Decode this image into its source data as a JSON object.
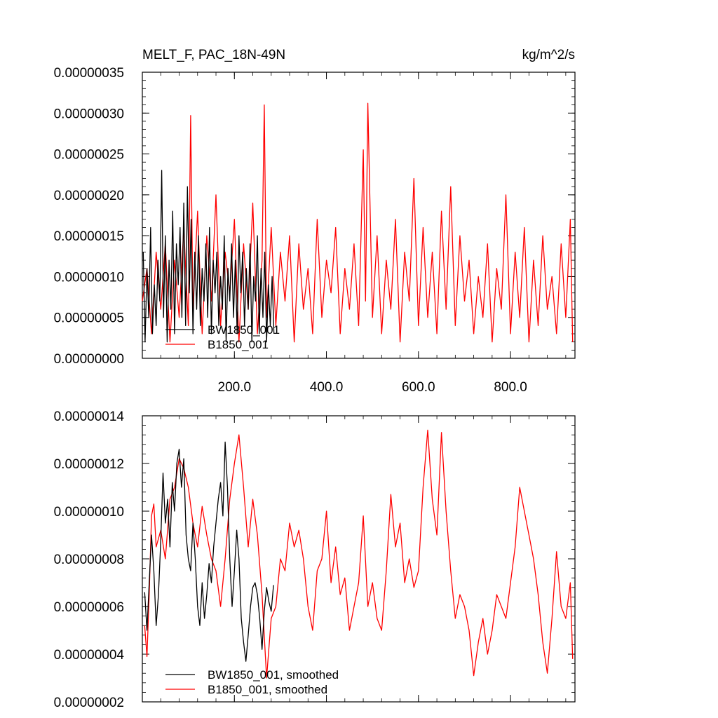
{
  "figure": {
    "colors": {
      "black_series": "#000000",
      "red_series": "#ff0000",
      "frame": "#000000"
    }
  },
  "chart_data": [
    {
      "type": "line",
      "title_left": "MELT_F, PAC_18N-49N",
      "title_right": "kg/m^2/s",
      "xlim": [
        0,
        940
      ],
      "ylim": [
        0.0,
        3.5e-07
      ],
      "xticks": [
        200,
        400,
        600,
        800
      ],
      "xtick_labels": [
        "200.0",
        "400.0",
        "600.0",
        "800.0"
      ],
      "yticks": [
        0.0,
        5e-08,
        1e-07,
        1.5e-07,
        2e-07,
        2.5e-07,
        3e-07,
        3.5e-07
      ],
      "ytick_labels": [
        "0.00000000",
        "0.00000005",
        "0.00000010",
        "0.00000015",
        "0.00000020",
        "0.00000025",
        "0.00000030",
        "0.00000035"
      ],
      "legend_position": "bottom-left",
      "series": [
        {
          "name": "BW1850_001",
          "color": "#000000",
          "x": [
            2,
            6,
            10,
            14,
            18,
            22,
            26,
            30,
            34,
            38,
            42,
            46,
            50,
            54,
            58,
            62,
            66,
            70,
            74,
            78,
            82,
            86,
            90,
            94,
            98,
            102,
            106,
            110,
            114,
            118,
            122,
            126,
            130,
            134,
            138,
            142,
            146,
            150,
            154,
            158,
            162,
            166,
            170,
            174,
            178,
            182,
            186,
            190,
            194,
            198,
            202,
            206,
            210,
            214,
            218,
            222,
            226,
            230,
            234,
            238,
            242,
            246,
            250,
            254,
            258,
            262,
            266,
            270,
            274,
            278,
            282,
            286
          ],
          "values": [
            1.3e-07,
            2e-08,
            1.1e-07,
            5e-08,
            1.6e-07,
            3e-08,
            9e-08,
            4e-08,
            1.2e-07,
            7e-08,
            2.3e-07,
            5e-08,
            1.5e-07,
            2e-08,
            1.2e-07,
            6e-08,
            1.8e-07,
            3e-08,
            1.4e-07,
            9e-08,
            1.6e-07,
            5e-08,
            1.9e-07,
            4e-08,
            2.1e-07,
            8e-08,
            1.7e-07,
            3e-08,
            1.3e-07,
            6e-08,
            1.5e-07,
            4e-08,
            1.1e-07,
            7e-08,
            1.4e-07,
            5e-08,
            1.6e-07,
            3e-08,
            1.2e-07,
            8e-08,
            1.3e-07,
            4e-08,
            1e-07,
            6e-08,
            1.5e-07,
            2e-08,
            1.1e-07,
            7e-08,
            1.4e-07,
            5e-08,
            1.2e-07,
            3e-08,
            1.5e-07,
            8e-08,
            1.3e-07,
            4e-08,
            1.1e-07,
            6e-08,
            1.4e-07,
            2e-08,
            1e-07,
            7e-08,
            1.5e-07,
            3e-08,
            1.1e-07,
            5e-08,
            1.3e-07,
            2e-08,
            9e-08,
            4e-08,
            1e-07,
            3e-08
          ]
        },
        {
          "name": "B1850_001",
          "color": "#ff0000",
          "x": [
            0,
            10,
            20,
            30,
            40,
            50,
            60,
            70,
            80,
            90,
            100,
            105,
            110,
            120,
            130,
            140,
            150,
            160,
            170,
            180,
            190,
            200,
            210,
            220,
            230,
            240,
            250,
            260,
            265,
            270,
            280,
            290,
            300,
            310,
            320,
            330,
            340,
            350,
            360,
            370,
            380,
            390,
            400,
            410,
            420,
            430,
            440,
            450,
            460,
            470,
            480,
            485,
            490,
            500,
            510,
            520,
            530,
            540,
            550,
            560,
            570,
            580,
            590,
            600,
            610,
            620,
            630,
            640,
            650,
            660,
            670,
            680,
            690,
            700,
            710,
            720,
            730,
            740,
            750,
            760,
            770,
            780,
            790,
            800,
            810,
            820,
            830,
            840,
            850,
            860,
            870,
            880,
            890,
            900,
            910,
            920,
            930,
            935
          ],
          "values": [
            7e-08,
            1.1e-07,
            3e-08,
            1.3e-07,
            6e-08,
            1.4e-07,
            2e-08,
            1.2e-07,
            5e-08,
            1.6e-07,
            4e-08,
            2.97e-07,
            6e-08,
            1.8e-07,
            3e-08,
            1.5e-07,
            7e-08,
            2e-07,
            4e-08,
            1.3e-07,
            8e-08,
            1.7e-07,
            2e-08,
            1.4e-07,
            6e-08,
            1.9e-07,
            3e-08,
            1.2e-07,
            3.1e-07,
            5e-08,
            1.6e-07,
            4e-08,
            1.3e-07,
            7e-08,
            1.5e-07,
            2e-08,
            1.4e-07,
            6e-08,
            1.1e-07,
            3e-08,
            1.7e-07,
            5e-08,
            1.2e-07,
            8e-08,
            1.6e-07,
            3e-08,
            1.1e-07,
            6e-08,
            1.4e-07,
            4e-08,
            2.55e-07,
            7e-08,
            3.12e-07,
            5e-08,
            1.5e-07,
            3e-08,
            1.2e-07,
            6e-08,
            1.7e-07,
            2e-08,
            1.3e-07,
            7e-08,
            2.2e-07,
            4e-08,
            1.6e-07,
            5e-08,
            1.3e-07,
            3e-08,
            1.8e-07,
            6e-08,
            2.1e-07,
            4e-08,
            1.5e-07,
            7e-08,
            1.2e-07,
            3e-08,
            1e-07,
            5e-08,
            1.4e-07,
            2e-08,
            1.1e-07,
            6e-08,
            2e-07,
            3e-08,
            1.3e-07,
            5e-08,
            1.6e-07,
            2e-08,
            1.2e-07,
            4e-08,
            1.5e-07,
            6e-08,
            1e-07,
            3e-08,
            1.4e-07,
            5e-08,
            1.7e-07,
            2e-08
          ]
        }
      ]
    },
    {
      "type": "line",
      "xlim": [
        0,
        940
      ],
      "ylim": [
        2e-08,
        1.4e-07
      ],
      "xticks": [
        200,
        400,
        600,
        800
      ],
      "yticks": [
        2e-08,
        4e-08,
        6e-08,
        8e-08,
        1e-07,
        1.2e-07,
        1.4e-07
      ],
      "ytick_labels": [
        "0.00000002",
        "0.00000004",
        "0.00000006",
        "0.00000008",
        "0.00000010",
        "0.00000012",
        "0.00000014"
      ],
      "legend_position": "bottom-left",
      "series": [
        {
          "name": "BW1850_001, smoothed",
          "color": "#000000",
          "x": [
            5,
            10,
            15,
            20,
            25,
            30,
            35,
            40,
            45,
            50,
            55,
            60,
            65,
            70,
            75,
            80,
            85,
            90,
            95,
            100,
            105,
            110,
            115,
            120,
            125,
            130,
            135,
            140,
            145,
            150,
            155,
            160,
            165,
            170,
            175,
            180,
            185,
            190,
            195,
            200,
            205,
            210,
            215,
            220,
            225,
            230,
            235,
            240,
            245,
            250,
            255,
            260,
            265,
            270,
            275,
            280,
            285
          ],
          "values": [
            6.6e-08,
            5e-08,
            7e-08,
            9e-08,
            7.5e-08,
            5.2e-08,
            6.5e-08,
            8.8e-08,
            1.16e-07,
            9.5e-08,
            1.05e-07,
            8.5e-08,
            1.12e-07,
            1e-07,
            1.2e-07,
            1.26e-07,
            1.1e-07,
            1.22e-07,
            9e-08,
            8e-08,
            7.5e-08,
            9.5e-08,
            8e-08,
            6e-08,
            5.2e-08,
            7e-08,
            5.5e-08,
            6.5e-08,
            7.8e-08,
            7e-08,
            8.5e-08,
            9.5e-08,
            1.05e-07,
            1.12e-07,
            9.8e-08,
            1.29e-07,
            1.1e-07,
            8e-08,
            6e-08,
            7.5e-08,
            9.2e-08,
            8e-08,
            5.5e-08,
            4.5e-08,
            3.7e-08,
            4.8e-08,
            6e-08,
            6.8e-08,
            7e-08,
            6.5e-08,
            5.5e-08,
            4.2e-08,
            5.8e-08,
            6.8e-08,
            6.2e-08,
            5.8e-08,
            6.9e-08
          ]
        },
        {
          "name": "B1850_001, smoothed",
          "color": "#ff0000",
          "x": [
            5,
            10,
            15,
            20,
            25,
            30,
            40,
            50,
            60,
            70,
            80,
            90,
            100,
            110,
            120,
            130,
            140,
            150,
            160,
            170,
            180,
            190,
            200,
            210,
            220,
            230,
            240,
            250,
            260,
            270,
            280,
            290,
            300,
            310,
            320,
            330,
            340,
            350,
            360,
            370,
            380,
            390,
            400,
            410,
            420,
            430,
            440,
            450,
            460,
            470,
            480,
            490,
            500,
            510,
            520,
            530,
            540,
            550,
            560,
            570,
            580,
            590,
            600,
            610,
            620,
            630,
            640,
            650,
            660,
            670,
            680,
            690,
            700,
            710,
            720,
            730,
            740,
            750,
            760,
            770,
            780,
            790,
            800,
            810,
            820,
            830,
            840,
            850,
            860,
            870,
            880,
            890,
            900,
            910,
            920,
            930,
            935
          ],
          "values": [
            5.2e-08,
            3.9e-08,
            6.5e-08,
            9.8e-08,
            1.03e-07,
            8.5e-08,
            9.2e-08,
            8e-08,
            1.05e-07,
            1.1e-07,
            1.22e-07,
            1.18e-07,
            1.1e-07,
            9.5e-08,
            8.5e-08,
            1.02e-07,
            9e-08,
            8e-08,
            7.5e-08,
            6e-08,
            8e-08,
            1.05e-07,
            1.2e-07,
            1.32e-07,
            1.1e-07,
            8.5e-08,
            1.05e-07,
            9e-08,
            6.5e-08,
            3e-08,
            5.5e-08,
            6e-08,
            8e-08,
            7.5e-08,
            9.5e-08,
            8.5e-08,
            9.2e-08,
            8e-08,
            6e-08,
            5e-08,
            7.5e-08,
            8e-08,
            1e-07,
            7e-08,
            8.5e-08,
            6.5e-08,
            7.2e-08,
            5e-08,
            6e-08,
            7e-08,
            9.8e-08,
            6e-08,
            7e-08,
            5.5e-08,
            5e-08,
            7.5e-08,
            1.07e-07,
            8.5e-08,
            9.5e-08,
            7e-08,
            8e-08,
            6.8e-08,
            7.5e-08,
            1.1e-07,
            1.34e-07,
            1.05e-07,
            9e-08,
            1.33e-07,
            1e-07,
            7.5e-08,
            5.5e-08,
            6.5e-08,
            6e-08,
            5e-08,
            3.1e-08,
            4.5e-08,
            5.5e-08,
            4e-08,
            5e-08,
            6.5e-08,
            6e-08,
            5.5e-08,
            7e-08,
            8.5e-08,
            1.1e-07,
            1e-07,
            9e-08,
            8e-08,
            6.5e-08,
            4.5e-08,
            3.2e-08,
            5.5e-08,
            8.3e-08,
            6e-08,
            5.5e-08,
            7e-08,
            3.8e-08
          ]
        }
      ]
    }
  ]
}
